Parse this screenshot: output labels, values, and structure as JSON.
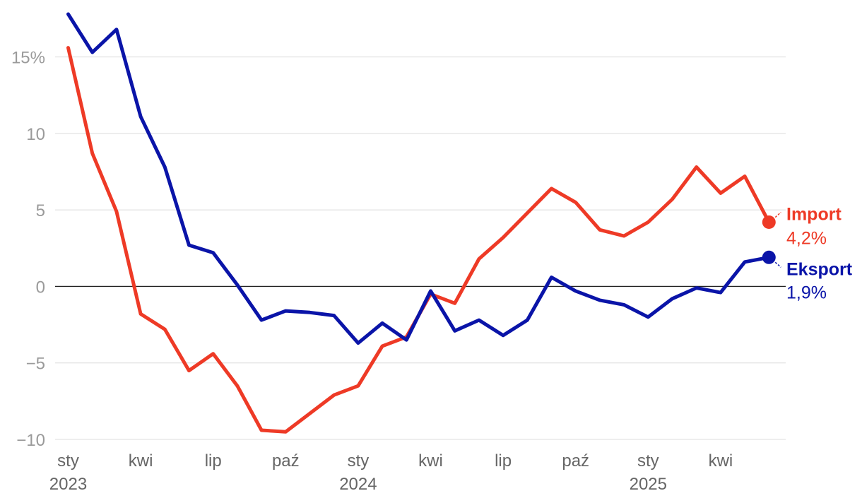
{
  "chart_data": {
    "type": "line",
    "title": "",
    "xlabel": "",
    "ylabel": "",
    "ylim": [
      -10,
      17.8
    ],
    "y_ticks": [
      {
        "value": 15,
        "label": "15%"
      },
      {
        "value": 10,
        "label": "10"
      },
      {
        "value": 5,
        "label": "5"
      },
      {
        "value": 0,
        "label": "0"
      },
      {
        "value": -5,
        "label": "−5"
      },
      {
        "value": -10,
        "label": "−10"
      }
    ],
    "x": [
      "2023-01",
      "2023-02",
      "2023-03",
      "2023-04",
      "2023-05",
      "2023-06",
      "2023-07",
      "2023-08",
      "2023-09",
      "2023-10",
      "2023-11",
      "2023-12",
      "2024-01",
      "2024-02",
      "2024-03",
      "2024-04",
      "2024-05",
      "2024-06",
      "2024-07",
      "2024-08",
      "2024-09",
      "2024-10",
      "2024-11",
      "2024-12",
      "2025-01",
      "2025-02",
      "2025-03",
      "2025-04",
      "2025-05",
      "2025-06",
      "2025-07"
    ],
    "x_ticks": [
      {
        "date": "2023-01",
        "label": "sty",
        "year": "2023"
      },
      {
        "date": "2023-04",
        "label": "kwi",
        "year": ""
      },
      {
        "date": "2023-07",
        "label": "lip",
        "year": ""
      },
      {
        "date": "2023-10",
        "label": "paź",
        "year": ""
      },
      {
        "date": "2024-01",
        "label": "sty",
        "year": "2024"
      },
      {
        "date": "2024-04",
        "label": "kwi",
        "year": ""
      },
      {
        "date": "2024-07",
        "label": "lip",
        "year": ""
      },
      {
        "date": "2024-10",
        "label": "paź",
        "year": ""
      },
      {
        "date": "2025-01",
        "label": "sty",
        "year": "2025"
      },
      {
        "date": "2025-04",
        "label": "kwi",
        "year": ""
      }
    ],
    "grid": true,
    "legend": "end-of-line labels",
    "series": [
      {
        "name": "Import",
        "color": "#ee3a26",
        "end_value_label": "4,2%",
        "values": [
          15.6,
          8.7,
          4.9,
          -1.8,
          -2.8,
          -5.5,
          -4.4,
          -6.5,
          -9.4,
          -9.5,
          -8.3,
          -7.1,
          -6.5,
          -3.9,
          -3.3,
          -0.5,
          -1.1,
          1.8,
          3.2,
          4.8,
          6.4,
          5.5,
          3.7,
          3.3,
          4.2,
          5.7,
          7.8,
          6.1,
          7.2,
          4.2,
          null
        ]
      },
      {
        "name": "Eksport",
        "color": "#0a14a8",
        "end_value_label": "1,9%",
        "values": [
          17.8,
          15.3,
          16.8,
          11.1,
          7.8,
          2.7,
          2.2,
          0.1,
          -2.2,
          -1.6,
          -1.7,
          -1.9,
          -3.7,
          -2.4,
          -3.5,
          -0.3,
          -2.9,
          -2.2,
          -3.2,
          -2.2,
          0.6,
          -0.3,
          -0.9,
          -1.2,
          -2.0,
          -0.8,
          -0.1,
          -0.4,
          1.6,
          1.9,
          null
        ]
      }
    ]
  }
}
